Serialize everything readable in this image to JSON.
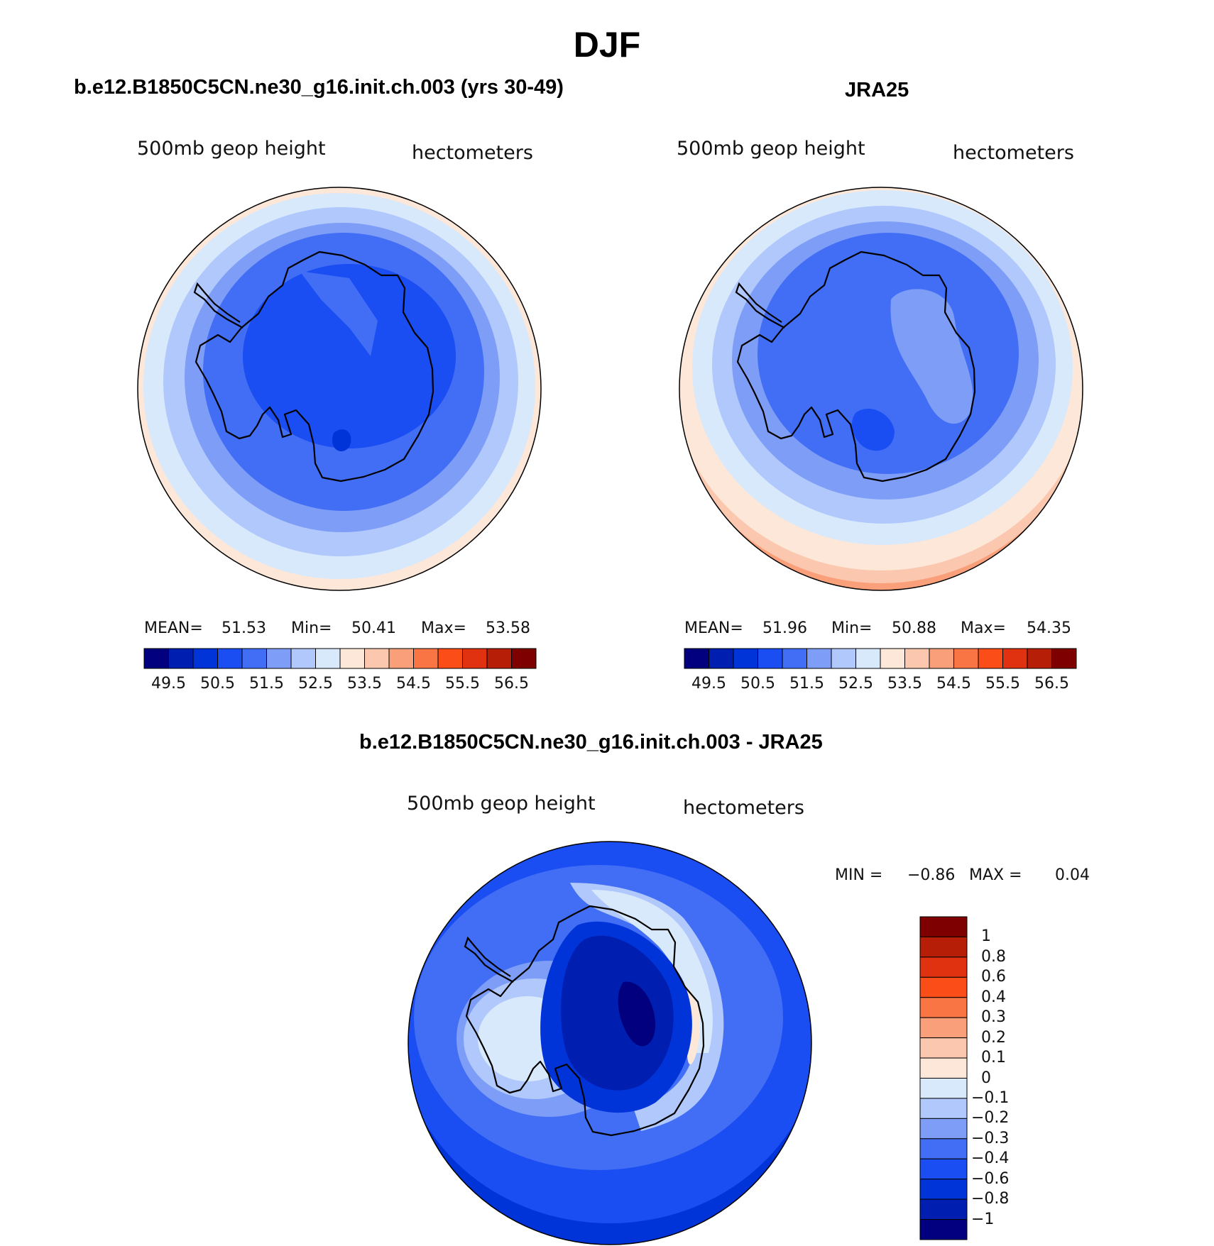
{
  "title": "DJF",
  "colorbar_colors": [
    "#02007f",
    "#001fb0",
    "#0034d9",
    "#1a4df2",
    "#416ef5",
    "#7e9df7",
    "#b0c8fb",
    "#d8e9fc",
    "#fde7d8",
    "#fbc7ae",
    "#f9a07b",
    "#f97544",
    "#fb4d18",
    "#e03110",
    "#b61e08",
    "#7f0000"
  ],
  "diff_colors": [
    "#02007f",
    "#001fb0",
    "#0034d9",
    "#1a4df2",
    "#416ef5",
    "#7e9df7",
    "#b0c8fb",
    "#d8e9fc",
    "#fde7d8",
    "#fbc7ae",
    "#f9a07b",
    "#f97544",
    "#fb4d18",
    "#e03110",
    "#b61e08",
    "#7f0000"
  ],
  "panels": [
    {
      "title": "b.e12.B1850C5CN.ne30_g16.init.ch.003 (yrs 30-49)",
      "variable": "500mb geop height",
      "units": "hectometers",
      "stats": {
        "mean_label": "MEAN=",
        "mean": "51.53",
        "min_label": "Min=",
        "min": "50.41",
        "max_label": "Max=",
        "max": "53.58"
      },
      "colorbar_labels": [
        "49.5",
        "50.5",
        "51.5",
        "52.5",
        "53.5",
        "54.5",
        "55.5",
        "56.5"
      ]
    },
    {
      "title": "JRA25",
      "variable": "500mb geop height",
      "units": "hectometers",
      "stats": {
        "mean_label": "MEAN=",
        "mean": "51.96",
        "min_label": "Min=",
        "min": "50.88",
        "max_label": "Max=",
        "max": "54.35"
      },
      "colorbar_labels": [
        "49.5",
        "50.5",
        "51.5",
        "52.5",
        "53.5",
        "54.5",
        "55.5",
        "56.5"
      ]
    }
  ],
  "difference": {
    "title": "b.e12.B1850C5CN.ne30_g16.init.ch.003 - JRA25",
    "variable": "500mb geop height",
    "units": "hectometers",
    "min_label": "MIN =",
    "min": "−0.86",
    "max_label": "MAX =",
    "max": "0.04",
    "colorbar_labels": [
      "1",
      "0.8",
      "0.6",
      "0.4",
      "0.3",
      "0.2",
      "0.1",
      "0",
      "−0.1",
      "−0.2",
      "−0.3",
      "−0.4",
      "−0.6",
      "−0.8",
      "−1"
    ]
  }
}
